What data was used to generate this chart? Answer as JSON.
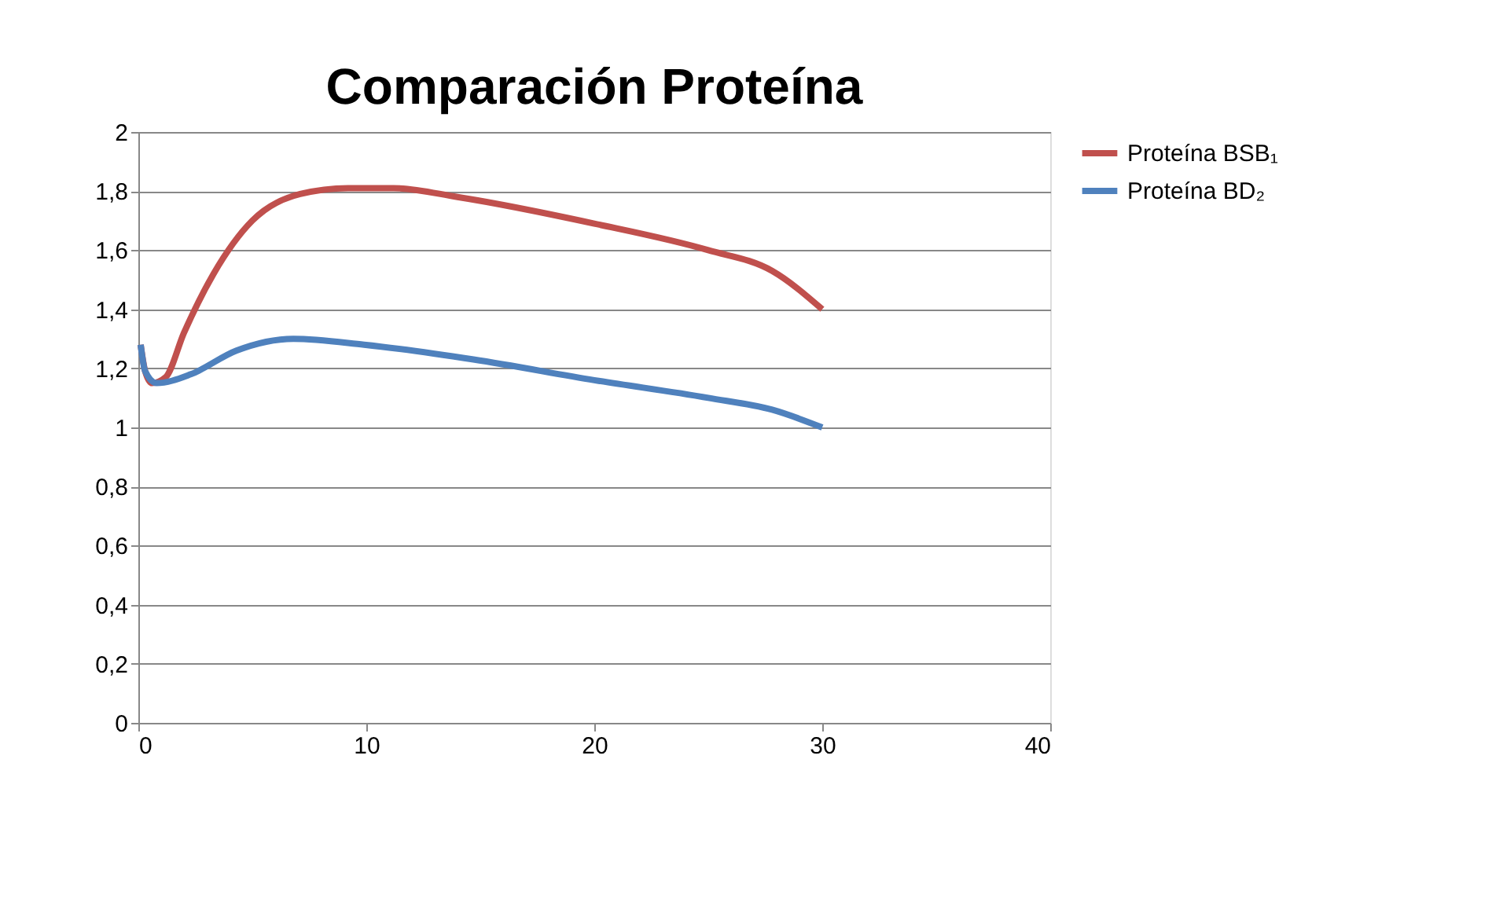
{
  "chart_data": {
    "type": "line",
    "title": "Comparación Proteína",
    "xlim": [
      0,
      40
    ],
    "xticks": [
      0,
      10,
      20,
      30,
      40
    ],
    "ylim": [
      0,
      2
    ],
    "yticks": [
      0,
      {
        "value": 0.2,
        "label": "0,2"
      },
      {
        "value": 0.4,
        "label": "0,4"
      },
      {
        "value": 0.6,
        "label": "0,6"
      },
      {
        "value": 0.8,
        "label": "0,8"
      },
      1,
      {
        "value": 1.2,
        "label": "1,2"
      },
      {
        "value": 1.4,
        "label": "1,4"
      },
      {
        "value": 1.6,
        "label": "1,6"
      },
      {
        "value": 1.8,
        "label": "1,8"
      },
      2
    ],
    "grid": "y",
    "legend": "right",
    "marker": "none",
    "line_style": "solid",
    "series": [
      {
        "name": "Proteína BSB₁",
        "color": "#c0504d",
        "x": [
          0.1,
          0.3,
          0.6,
          1.2,
          2.0,
          3.3,
          5.0,
          7.1,
          9.2,
          11.2,
          14.0,
          20.0,
          25.0,
          27.8,
          30.0
        ],
        "values": [
          1.28,
          1.19,
          1.15,
          1.17,
          1.32,
          1.52,
          1.7,
          1.79,
          1.81,
          1.81,
          1.78,
          1.69,
          1.6,
          1.53,
          1.4
        ]
      },
      {
        "name": "Proteína BD₂",
        "color": "#4f81bd",
        "x": [
          0.1,
          0.3,
          0.8,
          2.3,
          4.3,
          6.8,
          9.9,
          14.7,
          20.0,
          25.0,
          27.8,
          30.0
        ],
        "values": [
          1.28,
          1.19,
          1.15,
          1.18,
          1.26,
          1.3,
          1.28,
          1.23,
          1.16,
          1.1,
          1.06,
          1.0
        ]
      }
    ]
  }
}
